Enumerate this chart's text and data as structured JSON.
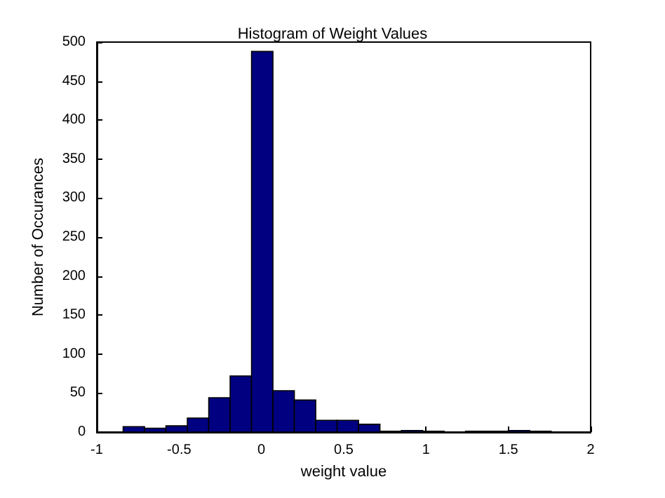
{
  "chart_data": {
    "type": "histogram",
    "title": "Histogram of Weight Values",
    "xlabel": "weight value",
    "ylabel": "Number of Occurances",
    "bins": [
      -0.84,
      -0.71,
      -0.58,
      -0.45,
      -0.32,
      -0.19,
      -0.06,
      0.07,
      0.2,
      0.33,
      0.46,
      0.59,
      0.72,
      0.85,
      0.98,
      1.11,
      1.24,
      1.37,
      1.5,
      1.63,
      1.76
    ],
    "values": [
      7,
      5,
      8,
      18,
      44,
      72,
      488,
      53,
      41,
      15,
      15,
      10,
      1,
      2,
      1,
      0,
      1,
      1,
      2,
      1
    ],
    "color": "#000080",
    "xlim": [
      -1,
      2
    ],
    "xticks": [
      -1,
      -0.5,
      0,
      0.5,
      1,
      1.5,
      2
    ],
    "ylim": [
      0,
      500
    ],
    "yticks": [
      0,
      50,
      100,
      150,
      200,
      250,
      300,
      350,
      400,
      450,
      500
    ],
    "grid": false
  }
}
